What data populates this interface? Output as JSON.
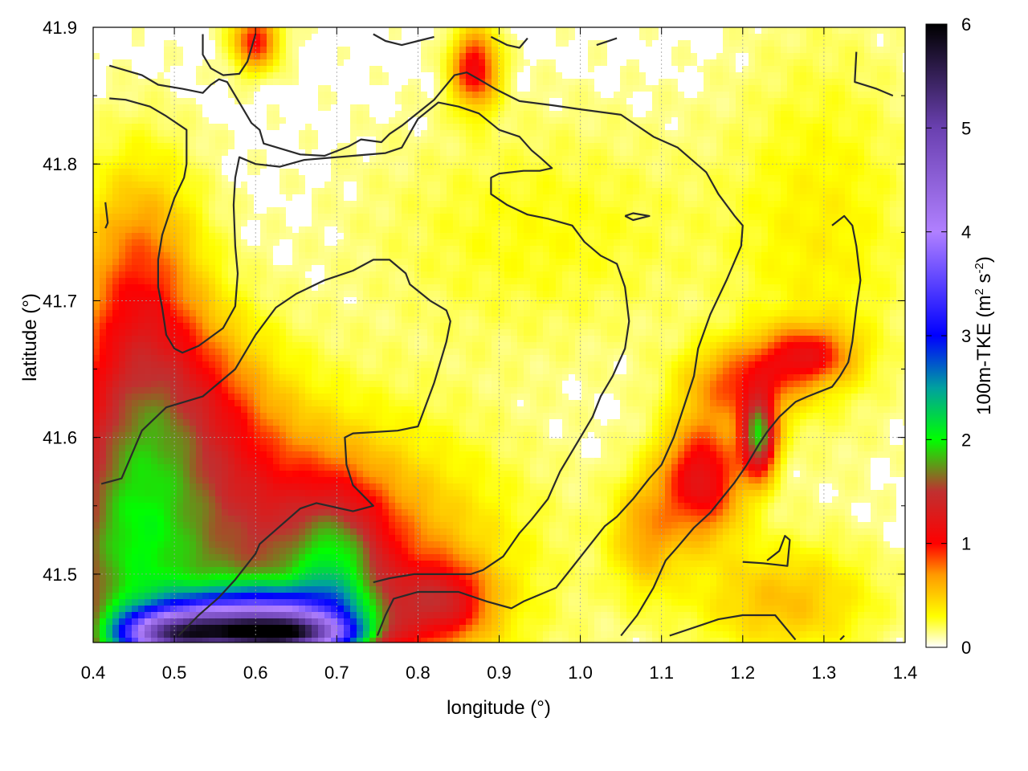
{
  "chart_data": {
    "type": "heatmap",
    "title": "",
    "xlabel": "longitude (°)",
    "ylabel": "latitude (°)",
    "colorbar_label": "100m-TKE (m² s⁻²)",
    "colorbar_label_parts": {
      "prefix": "100m-TKE (m",
      "sup1": "2",
      "mid": " s",
      "sup2": "-2",
      "suffix": ")"
    },
    "xlim": [
      0.4,
      1.4
    ],
    "ylim": [
      41.45,
      41.9
    ],
    "clim": [
      0,
      6
    ],
    "x_ticks": [
      "0.4",
      "0.5",
      "0.6",
      "0.7",
      "0.8",
      "0.9",
      "1.0",
      "1.1",
      "1.2",
      "1.3",
      "1.4"
    ],
    "x_tick_values": [
      0.4,
      0.5,
      0.6,
      0.7,
      0.8,
      0.9,
      1.0,
      1.1,
      1.2,
      1.3,
      1.4
    ],
    "y_ticks": [
      "41.5",
      "41.6",
      "41.7",
      "41.8",
      "41.9"
    ],
    "y_tick_values": [
      41.5,
      41.6,
      41.7,
      41.8,
      41.9
    ],
    "colorbar_ticks": [
      "0",
      "1",
      "2",
      "3",
      "4",
      "5",
      "6"
    ],
    "colorbar_tick_values": [
      0,
      1,
      2,
      3,
      4,
      5,
      6
    ],
    "grid": true,
    "colormap": [
      {
        "v": 0.0,
        "c": "#ffffff"
      },
      {
        "v": 0.3,
        "c": "#ffff00"
      },
      {
        "v": 0.7,
        "c": "#ff9900"
      },
      {
        "v": 1.0,
        "c": "#ff0000"
      },
      {
        "v": 1.5,
        "c": "#c03030"
      },
      {
        "v": 2.0,
        "c": "#00ff00"
      },
      {
        "v": 2.5,
        "c": "#00a0a0"
      },
      {
        "v": 3.0,
        "c": "#0000ff"
      },
      {
        "v": 4.0,
        "c": "#b080ff"
      },
      {
        "v": 5.0,
        "c": "#6a40b0"
      },
      {
        "v": 6.0,
        "c": "#000000"
      }
    ],
    "field_features": [
      {
        "lon": 0.58,
        "lat": 41.5,
        "slon": 0.18,
        "slat": 0.07,
        "amp": 1.4
      },
      {
        "lon": 0.44,
        "lat": 41.56,
        "slon": 0.06,
        "slat": 0.1,
        "amp": 0.9
      },
      {
        "lon": 0.52,
        "lat": 41.62,
        "slon": 0.07,
        "slat": 0.05,
        "amp": 0.7
      },
      {
        "lon": 0.46,
        "lat": 41.72,
        "slon": 0.05,
        "slat": 0.06,
        "amp": 0.55
      },
      {
        "lon": 0.6,
        "lat": 41.47,
        "slon": 0.08,
        "slat": 0.015,
        "amp": 2.2
      },
      {
        "lon": 0.63,
        "lat": 41.455,
        "slon": 0.06,
        "slat": 0.01,
        "amp": 3.6
      },
      {
        "lon": 0.5,
        "lat": 41.455,
        "slon": 0.05,
        "slat": 0.012,
        "amp": 3.2
      },
      {
        "lon": 0.7,
        "lat": 41.5,
        "slon": 0.04,
        "slat": 0.04,
        "amp": 0.9
      },
      {
        "lon": 1.15,
        "lat": 41.57,
        "slon": 0.035,
        "slat": 0.03,
        "amp": 1.1
      },
      {
        "lon": 1.22,
        "lat": 41.6,
        "slon": 0.015,
        "slat": 0.02,
        "amp": 1.6
      },
      {
        "lon": 1.2,
        "lat": 41.64,
        "slon": 0.05,
        "slat": 0.02,
        "amp": 0.7
      },
      {
        "lon": 1.28,
        "lat": 41.66,
        "slon": 0.04,
        "slat": 0.015,
        "amp": 0.8
      },
      {
        "lon": 0.83,
        "lat": 41.48,
        "slon": 0.04,
        "slat": 0.02,
        "amp": 0.8
      },
      {
        "lon": 0.87,
        "lat": 41.87,
        "slon": 0.02,
        "slat": 0.02,
        "amp": 1.0
      },
      {
        "lon": 0.6,
        "lat": 41.89,
        "slon": 0.02,
        "slat": 0.015,
        "amp": 0.9
      },
      {
        "lon": 1.08,
        "lat": 41.53,
        "slon": 0.03,
        "slat": 0.03,
        "amp": 0.5
      },
      {
        "lon": 1.25,
        "lat": 41.48,
        "slon": 0.08,
        "slat": 0.03,
        "amp": 0.45
      },
      {
        "lon": 0.95,
        "lat": 41.75,
        "slon": 0.15,
        "slat": 0.06,
        "amp": 0.2
      },
      {
        "lon": 1.3,
        "lat": 41.75,
        "slon": 0.08,
        "slat": 0.1,
        "amp": 0.25
      }
    ],
    "contours": [
      {
        "name": "",
        "points": [
          [
            0.42,
            41.872
          ],
          [
            0.46,
            41.865
          ],
          [
            0.48,
            41.858
          ],
          [
            0.51,
            41.855
          ],
          [
            0.535,
            41.852
          ],
          [
            0.545,
            41.858
          ],
          [
            0.555,
            41.862
          ],
          [
            0.565,
            41.86
          ],
          [
            0.58,
            41.845
          ],
          [
            0.595,
            41.83
          ],
          [
            0.605,
            41.825
          ],
          [
            0.61,
            41.815
          ],
          [
            0.655,
            41.807
          ],
          [
            0.685,
            41.806
          ],
          [
            0.715,
            41.813
          ],
          [
            0.73,
            41.818
          ],
          [
            0.755,
            41.816
          ],
          [
            0.765,
            41.822
          ],
          [
            0.78,
            41.828
          ],
          [
            0.82,
            41.847
          ],
          [
            0.845,
            41.865
          ],
          [
            0.86,
            41.867
          ],
          [
            0.875,
            41.862
          ],
          [
            0.895,
            41.855
          ],
          [
            0.925,
            41.846
          ],
          [
            0.965,
            41.843
          ],
          [
            1.0,
            41.84
          ],
          [
            1.05,
            41.836
          ],
          [
            1.09,
            41.82
          ],
          [
            1.12,
            41.812
          ],
          [
            1.155,
            41.794
          ],
          [
            1.17,
            41.778
          ],
          [
            1.19,
            41.762
          ],
          [
            1.2,
            41.755
          ],
          [
            1.198,
            41.74
          ],
          [
            1.18,
            41.715
          ],
          [
            1.16,
            41.69
          ],
          [
            1.145,
            41.665
          ],
          [
            1.14,
            41.645
          ],
          [
            1.115,
            41.6
          ],
          [
            1.1,
            41.58
          ],
          [
            1.085,
            41.57
          ],
          [
            1.065,
            41.555
          ],
          [
            1.045,
            41.542
          ],
          [
            1.03,
            41.535
          ],
          [
            1.01,
            41.52
          ],
          [
            0.99,
            41.505
          ],
          [
            0.97,
            41.49
          ],
          [
            0.95,
            41.485
          ],
          [
            0.93,
            41.48
          ],
          [
            0.915,
            41.475
          ],
          [
            0.885,
            41.48
          ],
          [
            0.85,
            41.487
          ],
          [
            0.8,
            41.487
          ],
          [
            0.77,
            41.482
          ],
          [
            0.76,
            41.47
          ],
          [
            0.75,
            41.455
          ]
        ]
      },
      {
        "name": "",
        "points": [
          [
            0.41,
            41.566
          ],
          [
            0.435,
            41.57
          ],
          [
            0.46,
            41.605
          ],
          [
            0.49,
            41.622
          ],
          [
            0.535,
            41.63
          ],
          [
            0.555,
            41.64
          ],
          [
            0.575,
            41.65
          ],
          [
            0.6,
            41.675
          ],
          [
            0.625,
            41.695
          ],
          [
            0.65,
            41.705
          ],
          [
            0.685,
            41.715
          ],
          [
            0.72,
            41.722
          ],
          [
            0.745,
            41.73
          ],
          [
            0.765,
            41.73
          ],
          [
            0.785,
            41.72
          ],
          [
            0.79,
            41.712
          ],
          [
            0.815,
            41.7
          ],
          [
            0.835,
            41.693
          ],
          [
            0.84,
            41.685
          ],
          [
            0.835,
            41.67
          ],
          [
            0.82,
            41.64
          ],
          [
            0.8,
            41.608
          ],
          [
            0.775,
            41.605
          ],
          [
            0.72,
            41.603
          ],
          [
            0.71,
            41.6
          ],
          [
            0.712,
            41.58
          ],
          [
            0.72,
            41.565
          ],
          [
            0.745,
            41.55
          ],
          [
            0.72,
            41.546
          ],
          [
            0.675,
            41.552
          ],
          [
            0.655,
            41.548
          ],
          [
            0.63,
            41.535
          ],
          [
            0.605,
            41.522
          ],
          [
            0.6,
            41.515
          ],
          [
            0.575,
            41.496
          ],
          [
            0.555,
            41.483
          ],
          [
            0.53,
            41.47
          ],
          [
            0.505,
            41.455
          ]
        ]
      },
      {
        "name": "",
        "points": [
          [
            0.42,
            41.848
          ],
          [
            0.44,
            41.847
          ],
          [
            0.47,
            41.842
          ],
          [
            0.49,
            41.835
          ],
          [
            0.515,
            41.825
          ],
          [
            0.515,
            41.8
          ],
          [
            0.512,
            41.79
          ],
          [
            0.5,
            41.775
          ],
          [
            0.485,
            41.748
          ],
          [
            0.48,
            41.73
          ],
          [
            0.48,
            41.71
          ],
          [
            0.485,
            41.695
          ],
          [
            0.49,
            41.675
          ],
          [
            0.5,
            41.665
          ],
          [
            0.51,
            41.662
          ],
          [
            0.53,
            41.667
          ],
          [
            0.56,
            41.68
          ],
          [
            0.575,
            41.696
          ],
          [
            0.578,
            41.72
          ],
          [
            0.575,
            41.74
          ],
          [
            0.573,
            41.77
          ],
          [
            0.575,
            41.79
          ],
          [
            0.58,
            41.805
          ],
          [
            0.6,
            41.8
          ],
          [
            0.63,
            41.798
          ],
          [
            0.66,
            41.803
          ],
          [
            0.68,
            41.804
          ],
          [
            0.72,
            41.806
          ],
          [
            0.76,
            41.808
          ],
          [
            0.78,
            41.812
          ],
          [
            0.8,
            41.833
          ],
          [
            0.825,
            41.845
          ],
          [
            0.85,
            41.842
          ],
          [
            0.875,
            41.837
          ],
          [
            0.9,
            41.825
          ],
          [
            0.925,
            41.82
          ],
          [
            0.94,
            41.81
          ],
          [
            0.95,
            41.805
          ],
          [
            0.965,
            41.797
          ],
          [
            0.95,
            41.795
          ],
          [
            0.93,
            41.795
          ],
          [
            0.9,
            41.793
          ],
          [
            0.89,
            41.79
          ],
          [
            0.89,
            41.778
          ],
          [
            0.91,
            41.77
          ],
          [
            0.935,
            41.763
          ],
          [
            0.96,
            41.76
          ],
          [
            0.99,
            41.755
          ],
          [
            1.005,
            41.743
          ],
          [
            1.025,
            41.733
          ],
          [
            1.045,
            41.727
          ],
          [
            1.055,
            41.71
          ],
          [
            1.06,
            41.685
          ],
          [
            1.055,
            41.665
          ],
          [
            1.04,
            41.645
          ],
          [
            1.025,
            41.63
          ],
          [
            1.015,
            41.615
          ],
          [
            1.005,
            41.605
          ],
          [
            0.99,
            41.59
          ],
          [
            0.975,
            41.575
          ],
          [
            0.96,
            41.555
          ],
          [
            0.94,
            41.54
          ],
          [
            0.925,
            41.53
          ],
          [
            0.905,
            41.513
          ],
          [
            0.88,
            41.503
          ],
          [
            0.865,
            41.5
          ],
          [
            0.82,
            41.5
          ],
          [
            0.795,
            41.5
          ],
          [
            0.765,
            41.497
          ],
          [
            0.745,
            41.494
          ]
        ]
      },
      {
        "name": "",
        "points": [
          [
            1.31,
            41.755
          ],
          [
            1.325,
            41.762
          ],
          [
            1.335,
            41.755
          ],
          [
            1.34,
            41.74
          ],
          [
            1.345,
            41.715
          ],
          [
            1.34,
            41.695
          ],
          [
            1.335,
            41.67
          ],
          [
            1.33,
            41.655
          ],
          [
            1.32,
            41.645
          ],
          [
            1.31,
            41.637
          ],
          [
            1.28,
            41.63
          ],
          [
            1.265,
            41.626
          ],
          [
            1.245,
            41.615
          ],
          [
            1.23,
            41.604
          ],
          [
            1.22,
            41.595
          ],
          [
            1.205,
            41.58
          ],
          [
            1.19,
            41.567
          ],
          [
            1.175,
            41.556
          ],
          [
            1.16,
            41.545
          ],
          [
            1.14,
            41.534
          ],
          [
            1.12,
            41.52
          ],
          [
            1.105,
            41.51
          ],
          [
            1.09,
            41.49
          ],
          [
            1.07,
            41.47
          ],
          [
            1.05,
            41.455
          ]
        ]
      },
      {
        "name": "",
        "points": [
          [
            1.11,
            41.455
          ],
          [
            1.15,
            41.463
          ],
          [
            1.17,
            41.467
          ],
          [
            1.2,
            41.47
          ],
          [
            1.22,
            41.47
          ],
          [
            1.24,
            41.47
          ],
          [
            1.265,
            41.452
          ]
        ]
      },
      {
        "name": "",
        "points": [
          [
            1.2,
            41.509
          ],
          [
            1.225,
            41.508
          ],
          [
            1.255,
            41.506
          ],
          [
            1.258,
            41.525
          ],
          [
            1.252,
            41.528
          ],
          [
            1.245,
            41.517
          ],
          [
            1.23,
            41.51
          ]
        ]
      },
      {
        "name": "",
        "points": [
          [
            1.055,
            41.762
          ],
          [
            1.065,
            41.764
          ],
          [
            1.085,
            41.762
          ],
          [
            1.065,
            41.759
          ],
          [
            1.055,
            41.762
          ]
        ]
      },
      {
        "name": "",
        "points": [
          [
            0.535,
            41.895
          ],
          [
            0.535,
            41.88
          ],
          [
            0.545,
            41.87
          ],
          [
            0.56,
            41.865
          ],
          [
            0.58,
            41.866
          ],
          [
            0.59,
            41.875
          ],
          [
            0.6,
            41.895
          ]
        ]
      },
      {
        "name": "",
        "points": [
          [
            0.745,
            41.895
          ],
          [
            0.76,
            41.89
          ],
          [
            0.78,
            41.887
          ],
          [
            0.8,
            41.89
          ],
          [
            0.82,
            41.893
          ]
        ]
      },
      {
        "name": "",
        "points": [
          [
            0.89,
            41.893
          ],
          [
            0.91,
            41.887
          ],
          [
            0.925,
            41.885
          ],
          [
            0.935,
            41.892
          ]
        ]
      },
      {
        "name": "",
        "points": [
          [
            1.02,
            41.887
          ],
          [
            1.045,
            41.892
          ]
        ]
      },
      {
        "name": "",
        "points": [
          [
            1.34,
            41.882
          ],
          [
            1.338,
            41.86
          ],
          [
            1.365,
            41.855
          ],
          [
            1.385,
            41.85
          ]
        ]
      },
      {
        "name": "",
        "points": [
          [
            0.415,
            41.772
          ],
          [
            0.418,
            41.757
          ],
          [
            0.415,
            41.753
          ]
        ]
      },
      {
        "name": "",
        "points": [
          [
            1.32,
            41.452
          ],
          [
            1.325,
            41.455
          ]
        ]
      }
    ]
  }
}
